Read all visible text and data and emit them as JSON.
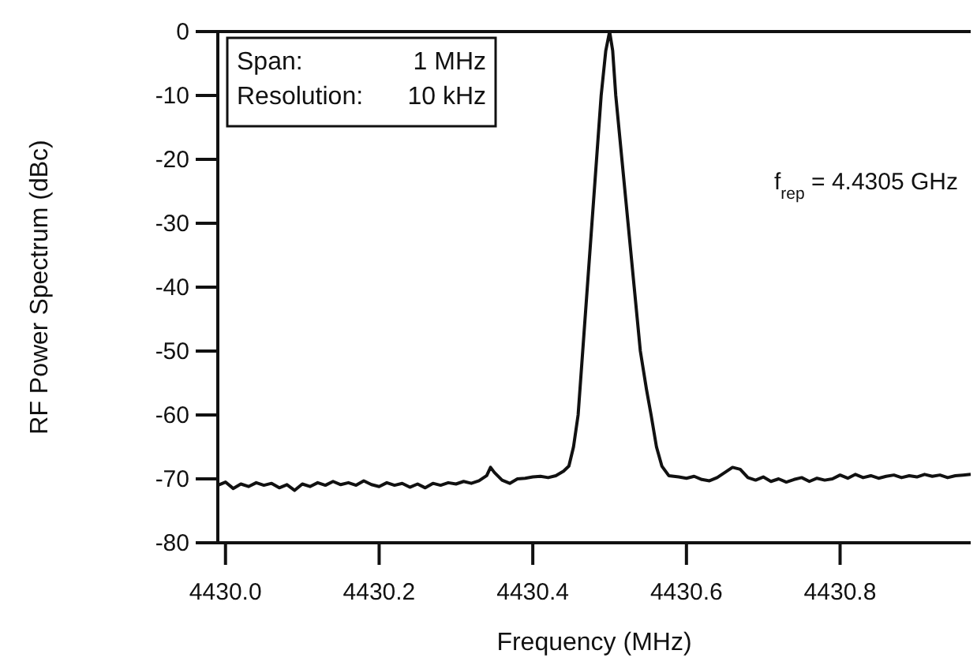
{
  "chart_data": {
    "type": "line",
    "xlabel": "Frequency (MHz)",
    "ylabel": "RF Power Spectrum (dBc)",
    "xlim": [
      4429.99,
      4430.97
    ],
    "ylim": [
      -80,
      0
    ],
    "xticks": [
      {
        "value": 4430.0,
        "label": "4430.0"
      },
      {
        "value": 4430.2,
        "label": "4430.2"
      },
      {
        "value": 4430.4,
        "label": "4430.4"
      },
      {
        "value": 4430.6,
        "label": "4430.6"
      },
      {
        "value": 4430.8,
        "label": "4430.8"
      }
    ],
    "yticks": [
      0,
      -10,
      -20,
      -30,
      -40,
      -50,
      -60,
      -70,
      -80
    ],
    "grid": false,
    "marker": "none",
    "line_style": "solid",
    "annotations": [
      "Span: 1 MHz",
      "Resolution: 10 kHz",
      "f$_{rep}$ = 4.4305 GHz"
    ],
    "series": [
      {
        "color": "#111111",
        "x": [
          4429.99,
          4430.0,
          4430.01,
          4430.02,
          4430.03,
          4430.04,
          4430.05,
          4430.06,
          4430.07,
          4430.08,
          4430.09,
          4430.1,
          4430.11,
          4430.12,
          4430.13,
          4430.14,
          4430.15,
          4430.16,
          4430.17,
          4430.18,
          4430.19,
          4430.2,
          4430.21,
          4430.22,
          4430.23,
          4430.24,
          4430.25,
          4430.26,
          4430.27,
          4430.28,
          4430.29,
          4430.3,
          4430.31,
          4430.32,
          4430.33,
          4430.34,
          4430.345,
          4430.35,
          4430.36,
          4430.37,
          4430.38,
          4430.39,
          4430.4,
          4430.41,
          4430.42,
          4430.43,
          4430.44,
          4430.447,
          4430.453,
          4430.459,
          4430.465,
          4430.471,
          4430.477,
          4430.483,
          4430.489,
          4430.495,
          4430.5,
          4430.504,
          4430.508,
          4430.516,
          4430.524,
          4430.532,
          4430.54,
          4430.548,
          4430.554,
          4430.561,
          4430.568,
          4430.577,
          4430.59,
          4430.6,
          4430.61,
          4430.62,
          4430.63,
          4430.64,
          4430.65,
          4430.66,
          4430.67,
          4430.68,
          4430.69,
          4430.7,
          4430.71,
          4430.72,
          4430.73,
          4430.74,
          4430.75,
          4430.76,
          4430.77,
          4430.78,
          4430.79,
          4430.8,
          4430.81,
          4430.82,
          4430.83,
          4430.84,
          4430.85,
          4430.86,
          4430.87,
          4430.88,
          4430.89,
          4430.9,
          4430.91,
          4430.92,
          4430.93,
          4430.94,
          4430.95,
          4430.96,
          4430.97
        ],
        "values": [
          -71,
          -70.5,
          -71.5,
          -70.8,
          -71.2,
          -70.6,
          -71,
          -70.7,
          -71.4,
          -70.9,
          -71.8,
          -70.8,
          -71.2,
          -70.6,
          -71,
          -70.4,
          -70.9,
          -70.6,
          -71,
          -70.3,
          -70.9,
          -71.2,
          -70.6,
          -71,
          -70.7,
          -71.3,
          -70.8,
          -71.4,
          -70.7,
          -71,
          -70.6,
          -70.8,
          -70.4,
          -70.7,
          -70.3,
          -69.5,
          -68.2,
          -69,
          -70.2,
          -70.7,
          -70,
          -69.9,
          -69.7,
          -69.6,
          -69.8,
          -69.5,
          -68.8,
          -68,
          -65,
          -60,
          -50,
          -40,
          -30,
          -20,
          -10,
          -3,
          0,
          -3,
          -10,
          -20,
          -30,
          -40,
          -50,
          -56,
          -60,
          -65,
          -68,
          -69.5,
          -69.7,
          -69.9,
          -69.6,
          -70.1,
          -70.3,
          -69.8,
          -69,
          -68.2,
          -68.5,
          -69.8,
          -70.2,
          -69.7,
          -70.4,
          -70,
          -70.5,
          -70.1,
          -69.8,
          -70.4,
          -69.9,
          -70.2,
          -70,
          -69.4,
          -69.9,
          -69.3,
          -69.8,
          -69.5,
          -69.9,
          -69.6,
          -69.4,
          -69.8,
          -69.5,
          -69.7,
          -69.3,
          -69.6,
          -69.4,
          -69.8,
          -69.5,
          -69.4,
          -69.3
        ]
      }
    ]
  }
}
